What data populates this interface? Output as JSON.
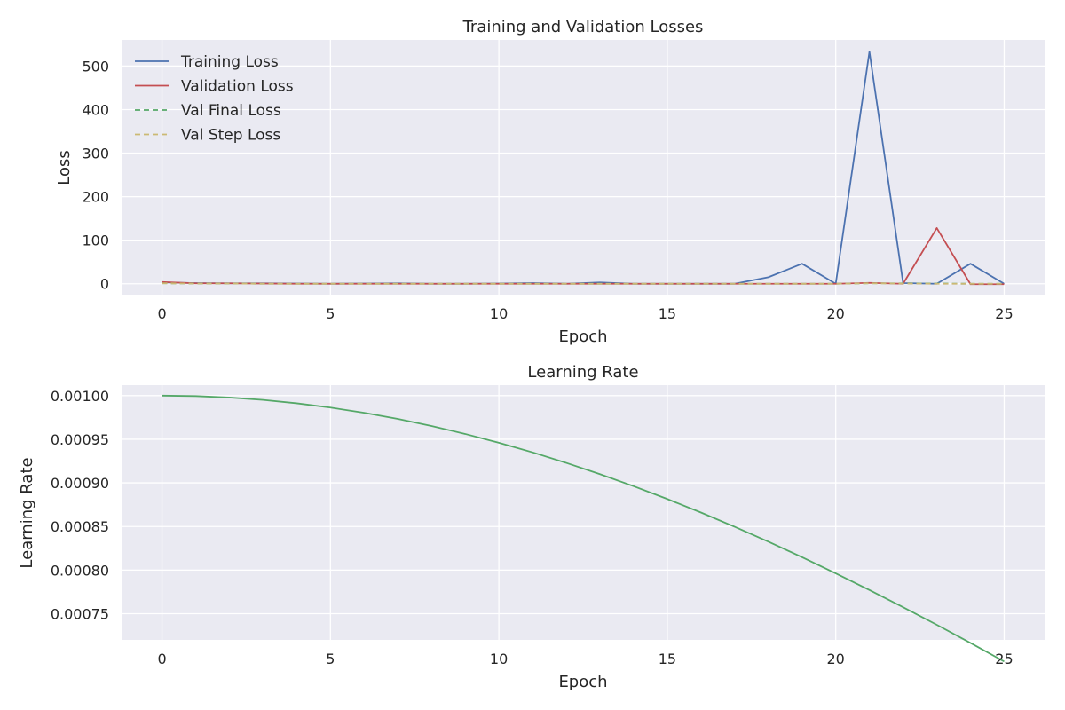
{
  "chart_data": [
    {
      "type": "line",
      "title": "Training and Validation Losses",
      "xlabel": "Epoch",
      "ylabel": "Loss",
      "xlim": [
        -1.2,
        26.2
      ],
      "ylim": [
        -25,
        560
      ],
      "xticks": [
        0,
        5,
        10,
        15,
        20,
        25
      ],
      "yticks": [
        0,
        100,
        200,
        300,
        400,
        500
      ],
      "grid": true,
      "legend_position": "top-left",
      "series": [
        {
          "name": "Training Loss",
          "color": "#4c72b0",
          "dash": "solid",
          "x": [
            0,
            1,
            2,
            3,
            4,
            5,
            6,
            7,
            8,
            9,
            10,
            11,
            12,
            13,
            14,
            15,
            16,
            17,
            18,
            19,
            20,
            21,
            22,
            23,
            24,
            25
          ],
          "y": [
            3,
            1.5,
            1,
            1,
            0.5,
            0,
            0.5,
            1,
            0,
            0,
            0.5,
            1.5,
            0,
            3,
            0,
            0,
            0,
            0,
            15,
            46,
            0,
            533,
            1.5,
            0,
            46,
            0
          ]
        },
        {
          "name": "Validation Loss",
          "color": "#c44e52",
          "dash": "solid",
          "x": [
            0,
            1,
            2,
            3,
            4,
            5,
            6,
            7,
            8,
            9,
            10,
            11,
            12,
            13,
            14,
            15,
            16,
            17,
            18,
            19,
            20,
            21,
            22,
            23,
            24,
            25
          ],
          "y": [
            4,
            1,
            1,
            0.5,
            0,
            0,
            0,
            0,
            0,
            0,
            0,
            0,
            0,
            0,
            0,
            0,
            0,
            0,
            0,
            0,
            0,
            2,
            0,
            128,
            -1,
            -1
          ]
        },
        {
          "name": "Val Final Loss",
          "color": "#55a868",
          "dash": "dashed",
          "x": [
            0,
            1,
            2,
            3,
            4,
            5,
            6,
            7,
            8,
            9,
            10,
            11,
            12,
            13,
            14,
            15,
            16,
            17,
            18,
            19,
            20,
            21,
            22,
            23,
            24,
            25
          ],
          "y": [
            1,
            0.5,
            0.5,
            0,
            0,
            0,
            0,
            0,
            0,
            0,
            0,
            0,
            0,
            0,
            0,
            0,
            0,
            0,
            0,
            0,
            0,
            1,
            1,
            0.5,
            0,
            0
          ]
        },
        {
          "name": "Val Step Loss",
          "color": "#ccb974",
          "dash": "dashed",
          "x": [
            0,
            1,
            2,
            3,
            4,
            5,
            6,
            7,
            8,
            9,
            10,
            11,
            12,
            13,
            14,
            15,
            16,
            17,
            18,
            19,
            20,
            21,
            22,
            23,
            24,
            25
          ],
          "y": [
            1,
            0.5,
            0.5,
            0,
            0,
            0,
            0,
            0,
            0,
            0,
            0,
            0,
            0,
            0,
            0,
            0,
            0,
            0,
            0,
            0,
            0,
            1,
            0.5,
            0,
            0,
            0
          ]
        }
      ]
    },
    {
      "type": "line",
      "title": "Learning Rate",
      "xlabel": "Epoch",
      "ylabel": "Learning Rate",
      "xlim": [
        -1.2,
        26.2
      ],
      "ylim": [
        0.00072,
        0.001012
      ],
      "xticks": [
        0,
        5,
        10,
        15,
        20,
        25
      ],
      "yticks": [
        0.00075,
        0.0008,
        0.00085,
        0.0009,
        0.00095,
        0.001
      ],
      "ytick_labels": [
        "0.00075",
        "0.00080",
        "0.00085",
        "0.00090",
        "0.00095",
        "0.00100"
      ],
      "grid": true,
      "series": [
        {
          "name": "",
          "color": "#55a868",
          "dash": "solid",
          "x": [
            0,
            1,
            2,
            3,
            4,
            5,
            6,
            7,
            8,
            9,
            10,
            11,
            12,
            13,
            14,
            15,
            16,
            17,
            18,
            19,
            20,
            21,
            22,
            23,
            24,
            25
          ],
          "y": [
            0.001,
            0.0009995,
            0.0009978,
            0.0009951,
            0.0009912,
            0.0009863,
            0.0009803,
            0.0009733,
            0.0009652,
            0.0009561,
            0.000946,
            0.000935,
            0.0009229,
            0.00091,
            0.0008962,
            0.0008815,
            0.000866,
            0.0008497,
            0.0008326,
            0.0008148,
            0.0007963,
            0.0007772,
            0.0007575,
            0.0007373,
            0.0007165,
            0.0006952
          ]
        }
      ]
    }
  ]
}
